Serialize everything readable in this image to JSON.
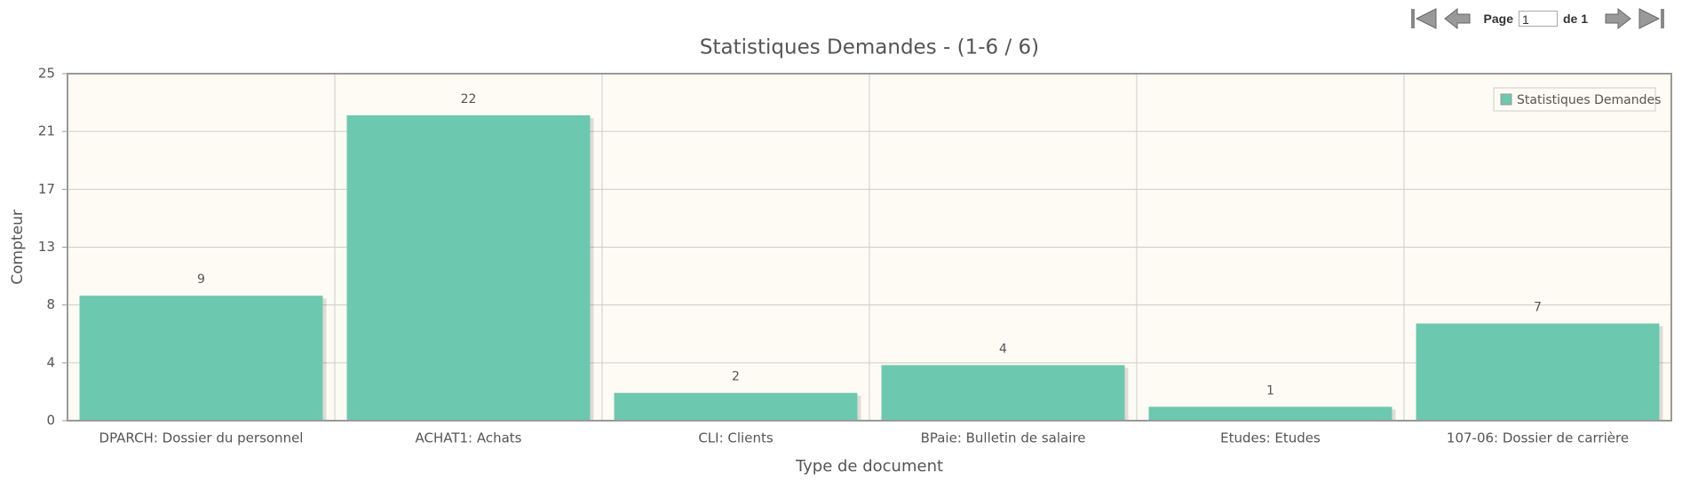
{
  "pager": {
    "page_label": "Page",
    "page_value": "1",
    "of_label": "de 1"
  },
  "chart_data": {
    "type": "bar",
    "title": "Statistiques Demandes - (1-6 / 6)",
    "x_label": "Type de document",
    "y_label": "Compteur",
    "categories": [
      "DPARCH: Dossier du personnel",
      "ACHAT1: Achats",
      "CLI: Clients",
      "BPaie: Bulletin de salaire",
      "Etudes: Etudes",
      "107-06: Dossier de carrière"
    ],
    "series": [
      {
        "name": "Statistiques Demandes",
        "color": "#6cc8ae",
        "values": [
          9,
          22,
          2,
          4,
          1,
          7
        ]
      }
    ],
    "ylim": [
      0,
      25
    ],
    "yticks": [
      0,
      {
        "value": 4.1667,
        "label": "4"
      },
      {
        "value": 8.3333,
        "label": "8"
      },
      {
        "value": 12.5,
        "label": "13"
      },
      {
        "value": 16.6667,
        "label": "17"
      },
      {
        "value": 20.8333,
        "label": "21"
      },
      25
    ],
    "grid": true,
    "legend": "top-right"
  }
}
